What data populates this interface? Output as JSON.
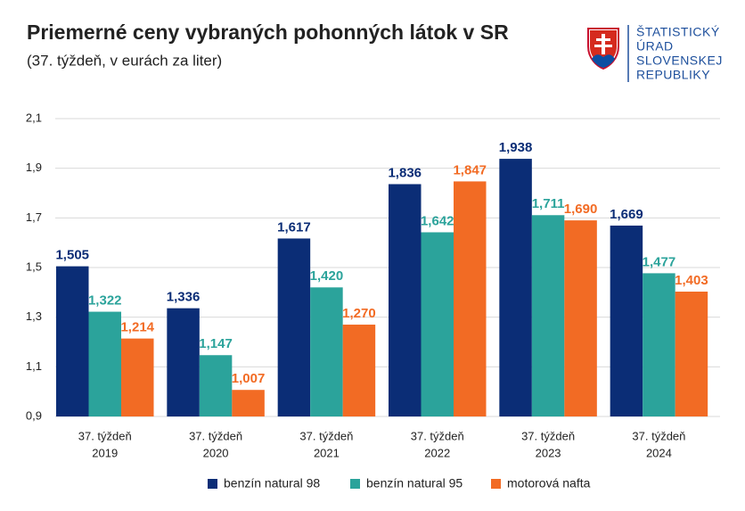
{
  "chart_data": {
    "type": "bar",
    "title": "Priemerné ceny vybraných pohonných látok v SR",
    "subtitle": "(37. týždeň, v eurách za liter)",
    "categories": [
      [
        "37. týždeň",
        "2019"
      ],
      [
        "37. týždeň",
        "2020"
      ],
      [
        "37. týždeň",
        "2021"
      ],
      [
        "37. týždeň",
        "2022"
      ],
      [
        "37. týždeň",
        "2023"
      ],
      [
        "37. týždeň",
        "2024"
      ]
    ],
    "series": [
      {
        "name": "benzín natural 98",
        "color": "#0b2d76",
        "values": [
          1.505,
          1.336,
          1.617,
          1.836,
          1.938,
          1.669
        ],
        "value_labels": [
          "1,505",
          "1,336",
          "1,617",
          "1,836",
          "1,938",
          "1,669"
        ]
      },
      {
        "name": "benzín natural 95",
        "color": "#2ba39b",
        "values": [
          1.322,
          1.147,
          1.42,
          1.642,
          1.711,
          1.477
        ],
        "value_labels": [
          "1,322",
          "1,147",
          "1,420",
          "1,642",
          "1,711",
          "1,477"
        ]
      },
      {
        "name": "motorová nafta",
        "color": "#f26b24",
        "values": [
          1.214,
          1.007,
          1.27,
          1.847,
          1.69,
          1.403
        ],
        "value_labels": [
          "1,214",
          "1,007",
          "1,270",
          "1,847",
          "1,690",
          "1,403"
        ]
      }
    ],
    "ylim": [
      0.9,
      2.1
    ],
    "yticks": [
      {
        "value": 0.9,
        "label": "0,9"
      },
      {
        "value": 1.1,
        "label": "1,1"
      },
      {
        "value": 1.3,
        "label": "1,3"
      },
      {
        "value": 1.5,
        "label": "1,5"
      },
      {
        "value": 1.7,
        "label": "1,7"
      },
      {
        "value": 1.9,
        "label": "1,9"
      },
      {
        "value": 2.1,
        "label": "2,1"
      }
    ],
    "grid": true,
    "legend": "bottom"
  },
  "logo": {
    "lines": [
      "ŠTATISTICKÝ",
      "ÚRAD",
      "SLOVENSKEJ",
      "REPUBLIKY"
    ]
  }
}
